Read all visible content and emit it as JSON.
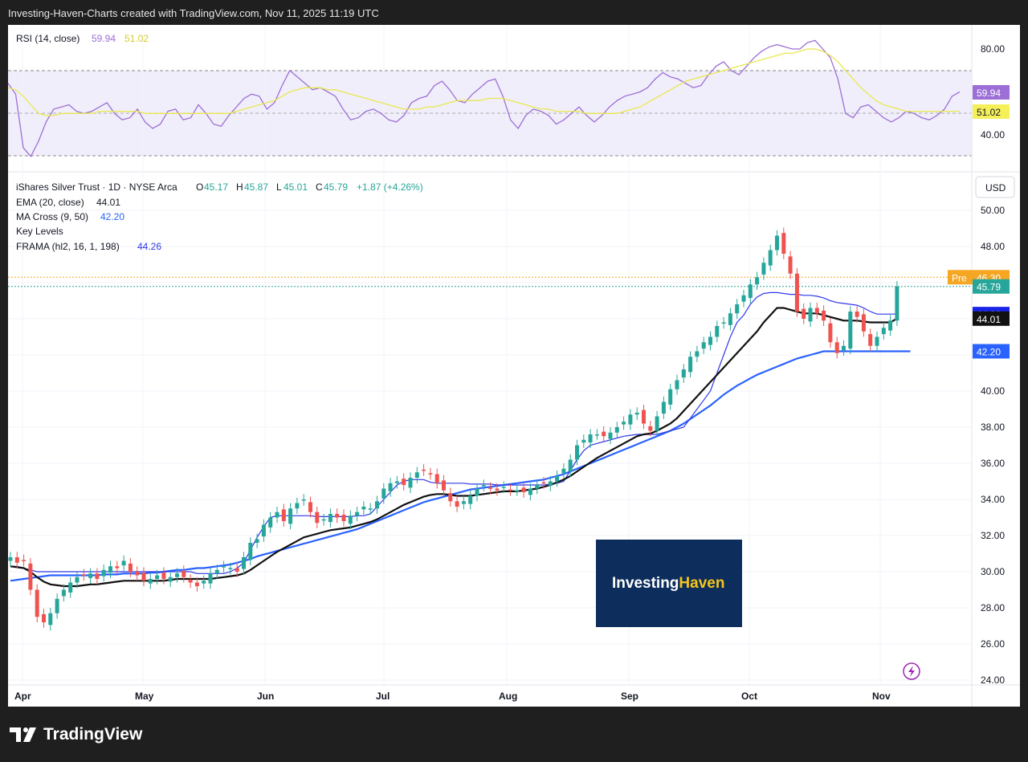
{
  "header": {
    "caption": "Investing-Haven-Charts created with TradingView.com, Nov 11, 2025 11:19 UTC"
  },
  "footer": {
    "brand": "TradingView"
  },
  "rsi": {
    "title": "RSI (14, close)",
    "value": "59.94",
    "ma_value": "51.02",
    "ticks": [
      "80.00",
      "40.00"
    ],
    "badge_rsi": "59.94",
    "badge_ma": "51.02"
  },
  "legend": {
    "symbol": "iShares Silver Trust · 1D · NYSE Arca",
    "o_label": "O",
    "o": "45.17",
    "h_label": "H",
    "h": "45.87",
    "l_label": "L",
    "l": "45.01",
    "c_label": "C",
    "c": "45.79",
    "change": "+1.87 (+4.26%)",
    "ema_title": "EMA (20, close)",
    "ema_value": "44.01",
    "ma_title": "MA Cross (9, 50)",
    "ma_value": "42.20",
    "keylevels_title": "Key Levels",
    "frama_title": "FRAMA (hl2, 16, 1, 198)",
    "frama_value": "44.26"
  },
  "currency": "USD",
  "price_badges": {
    "pre_label": "Pre",
    "pre": "46.30",
    "last": "45.79",
    "frama": "44.26",
    "ema": "44.01",
    "ma": "42.20"
  },
  "watermark": {
    "part1": "Investing",
    "part2": "Haven"
  },
  "colors": {
    "up": "#26a69a",
    "down": "#ef5350",
    "rsi": "#9c6fd6",
    "rsi_ma": "#e8e84f",
    "ema": "#111111",
    "frama": "#2f38e8",
    "ma": "#2962ff",
    "pre": "#f5a623",
    "watermark_bg": "#0d2e5c",
    "watermark_accent": "#f5c518"
  },
  "chart_data": {
    "type": "candlestick",
    "y_axis_ticks": [
      "50.00",
      "48.00",
      "46.00",
      "44.00",
      "42.00",
      "40.00",
      "38.00",
      "36.00",
      "34.00",
      "32.00",
      "30.00",
      "28.00",
      "26.00",
      "24.00"
    ],
    "x_axis_labels": [
      "Apr",
      "May",
      "Jun",
      "Jul",
      "Aug",
      "Sep",
      "Oct",
      "Nov"
    ],
    "ylim": [
      24,
      51
    ],
    "closes": [
      30.8,
      30.5,
      30.6,
      29.0,
      27.5,
      27.2,
      27.7,
      28.5,
      29.0,
      29.4,
      29.7,
      29.8,
      29.9,
      29.6,
      30.1,
      30.3,
      30.2,
      30.6,
      30.0,
      29.8,
      29.5,
      29.6,
      29.8,
      29.6,
      29.7,
      29.9,
      29.7,
      29.4,
      29.2,
      29.5,
      29.9,
      30.1,
      30.3,
      30.2,
      30.0,
      30.8,
      31.6,
      31.8,
      32.6,
      33.0,
      33.3,
      32.8,
      33.5,
      33.8,
      34.0,
      33.3,
      32.7,
      32.9,
      33.2,
      33.0,
      32.8,
      33.1,
      33.3,
      33.6,
      33.5,
      33.9,
      34.6,
      34.9,
      35.0,
      34.8,
      35.2,
      35.5,
      35.6,
      35.4,
      34.9,
      34.5,
      33.9,
      33.6,
      33.9,
      34.2,
      34.6,
      34.8,
      34.6,
      34.5,
      34.7,
      34.5,
      34.5,
      34.4,
      34.6,
      34.8,
      34.9,
      35.0,
      35.3,
      35.7,
      36.2,
      37.0,
      37.3,
      37.6,
      37.6,
      37.5,
      37.7,
      38.0,
      38.3,
      38.7,
      38.8,
      38.2,
      37.8,
      38.6,
      39.4,
      40.1,
      40.6,
      41.2,
      41.9,
      42.2,
      42.7,
      43.0,
      43.6,
      43.8,
      44.3,
      44.8,
      45.3,
      45.9,
      46.3,
      47.1,
      47.8,
      48.6,
      47.6,
      46.5,
      44.4,
      44.0,
      44.6,
      44.3,
      43.9,
      42.7,
      42.1,
      42.5,
      44.4,
      44.1,
      43.3,
      42.5,
      43.0,
      43.5,
      43.9,
      45.79
    ],
    "ema20": [
      30.3,
      30.25,
      30.2,
      30.0,
      29.7,
      29.45,
      29.3,
      29.25,
      29.2,
      29.2,
      29.2,
      29.25,
      29.3,
      29.3,
      29.35,
      29.4,
      29.45,
      29.5,
      29.5,
      29.5,
      29.5,
      29.5,
      29.5,
      29.5,
      29.55,
      29.6,
      29.6,
      29.6,
      29.6,
      29.6,
      29.6,
      29.65,
      29.7,
      29.75,
      29.8,
      29.9,
      30.1,
      30.35,
      30.6,
      30.85,
      31.1,
      31.3,
      31.5,
      31.7,
      31.9,
      32.0,
      32.1,
      32.2,
      32.3,
      32.35,
      32.4,
      32.45,
      32.55,
      32.65,
      32.75,
      32.9,
      33.1,
      33.3,
      33.5,
      33.7,
      33.85,
      34.0,
      34.15,
      34.25,
      34.3,
      34.3,
      34.25,
      34.2,
      34.2,
      34.2,
      34.25,
      34.3,
      34.35,
      34.4,
      34.45,
      34.45,
      34.45,
      34.5,
      34.55,
      34.6,
      34.7,
      34.8,
      34.95,
      35.1,
      35.3,
      35.55,
      35.8,
      36.05,
      36.3,
      36.5,
      36.7,
      36.9,
      37.1,
      37.3,
      37.5,
      37.6,
      37.65,
      37.8,
      38.0,
      38.2,
      38.5,
      38.9,
      39.3,
      39.7,
      40.1,
      40.5,
      40.9,
      41.3,
      41.7,
      42.1,
      42.5,
      42.9,
      43.3,
      43.8,
      44.2,
      44.6,
      44.6,
      44.5,
      44.4,
      44.3,
      44.3,
      44.3,
      44.2,
      44.1,
      44.0,
      43.9,
      43.9,
      43.9,
      43.85,
      43.8,
      43.8,
      43.8,
      43.8,
      44.01
    ],
    "frama": [
      30.3,
      30.3,
      30.2,
      30.1,
      30.0,
      30.0,
      30.0,
      30.0,
      30.0,
      30.0,
      30.0,
      30.0,
      30.0,
      30.0,
      30.0,
      30.0,
      30.0,
      30.0,
      30.0,
      30.0,
      30.0,
      30.0,
      30.0,
      30.0,
      30.0,
      30.0,
      30.0,
      30.0,
      29.9,
      29.9,
      29.9,
      29.9,
      29.9,
      30.0,
      30.2,
      30.5,
      31.2,
      31.9,
      32.5,
      33.0,
      33.1,
      33.1,
      33.1,
      33.1,
      33.1,
      33.1,
      33.05,
      33.05,
      33.05,
      33.05,
      33.05,
      33.05,
      33.1,
      33.1,
      33.2,
      33.6,
      34.0,
      34.4,
      34.8,
      35.0,
      35.1,
      35.1,
      35.1,
      34.95,
      34.9,
      34.9,
      34.9,
      34.9,
      34.9,
      34.85,
      34.85,
      34.85,
      34.85,
      34.8,
      34.8,
      34.8,
      34.8,
      34.8,
      34.8,
      34.8,
      34.8,
      34.85,
      34.9,
      35.0,
      35.6,
      36.2,
      36.7,
      37.0,
      37.1,
      37.2,
      37.3,
      37.4,
      37.5,
      37.55,
      37.6,
      37.6,
      37.6,
      37.6,
      37.7,
      37.8,
      37.9,
      38.0,
      38.5,
      39.0,
      39.5,
      40.0,
      41.0,
      42.0,
      43.0,
      43.8,
      44.2,
      44.8,
      45.2,
      45.4,
      45.45,
      45.45,
      45.4,
      45.35,
      45.35,
      45.3,
      45.3,
      45.25,
      45.15,
      45.0,
      44.9,
      44.85,
      44.8,
      44.75,
      44.6,
      44.4,
      44.26,
      44.26,
      44.26,
      44.26
    ],
    "ma50": [
      29.5,
      29.55,
      29.6,
      29.65,
      29.7,
      29.75,
      29.8,
      29.8,
      29.8,
      29.8,
      29.8,
      29.8,
      29.8,
      29.8,
      29.85,
      29.85,
      29.85,
      29.9,
      29.9,
      29.9,
      29.9,
      29.95,
      29.95,
      30.0,
      30.05,
      30.1,
      30.1,
      30.15,
      30.2,
      30.2,
      30.25,
      30.3,
      30.35,
      30.4,
      30.5,
      30.6,
      30.7,
      30.85,
      30.95,
      31.05,
      31.15,
      31.25,
      31.35,
      31.45,
      31.55,
      31.65,
      31.75,
      31.85,
      31.95,
      32.05,
      32.15,
      32.25,
      32.35,
      32.5,
      32.65,
      32.8,
      32.95,
      33.1,
      33.25,
      33.4,
      33.55,
      33.7,
      33.85,
      33.95,
      34.05,
      34.15,
      34.25,
      34.35,
      34.45,
      34.55,
      34.6,
      34.65,
      34.7,
      34.75,
      34.8,
      34.85,
      34.9,
      34.95,
      35.0,
      35.05,
      35.1,
      35.2,
      35.3,
      35.4,
      35.55,
      35.7,
      35.85,
      36.0,
      36.15,
      36.3,
      36.45,
      36.6,
      36.75,
      36.9,
      37.05,
      37.2,
      37.35,
      37.5,
      37.65,
      37.8,
      38.0,
      38.2,
      38.45,
      38.7,
      38.95,
      39.2,
      39.5,
      39.8,
      40.05,
      40.3,
      40.5,
      40.7,
      40.9,
      41.05,
      41.2,
      41.35,
      41.5,
      41.65,
      41.8,
      41.9,
      42.0,
      42.1,
      42.2,
      42.2,
      42.2,
      42.2,
      42.2,
      42.2,
      42.2,
      42.2,
      42.2,
      42.2,
      42.2,
      42.2,
      42.2,
      42.2
    ],
    "rsi_ticks": [
      80,
      40
    ],
    "rsi_values": [
      64,
      59,
      34,
      30,
      37,
      46,
      52,
      53,
      54,
      51,
      50,
      51,
      53,
      55,
      50,
      47,
      48,
      52,
      46,
      43,
      45,
      51,
      52,
      47,
      48,
      54,
      50,
      45,
      44,
      49,
      53,
      57,
      59,
      58,
      52,
      55,
      63,
      70,
      67,
      64,
      61,
      62,
      60,
      58,
      52,
      47,
      48,
      51,
      52,
      50,
      47,
      46,
      49,
      55,
      57,
      58,
      63,
      65,
      61,
      56,
      55,
      59,
      62,
      65,
      66,
      58,
      47,
      43,
      49,
      52,
      51,
      49,
      45,
      47,
      50,
      53,
      49,
      46,
      49,
      53,
      56,
      58,
      59,
      60,
      62,
      66,
      69,
      67,
      66,
      64,
      62,
      63,
      68,
      72,
      74,
      70,
      68,
      72,
      76,
      79,
      81,
      82,
      81,
      80,
      80,
      83,
      84,
      80,
      76,
      66,
      50,
      48,
      53,
      54,
      51,
      48,
      46,
      48,
      51,
      50,
      48,
      47,
      49,
      52,
      58,
      60
    ],
    "rsi_ma_values": [
      62,
      61,
      58,
      54,
      50,
      49,
      49,
      50,
      50,
      50,
      50,
      50,
      51,
      51,
      51,
      51,
      51,
      51,
      50,
      50,
      50,
      50,
      50,
      50,
      50,
      50,
      50,
      50,
      50,
      50,
      51,
      52,
      53,
      54,
      55,
      56,
      58,
      60,
      61,
      62,
      62,
      62,
      61,
      61,
      60,
      59,
      58,
      57,
      56,
      55,
      54,
      53,
      52,
      52,
      52,
      53,
      53,
      54,
      55,
      56,
      56,
      56,
      56,
      57,
      57,
      57,
      56,
      55,
      54,
      53,
      52,
      52,
      51,
      51,
      51,
      51,
      50,
      50,
      50,
      50,
      50,
      51,
      52,
      53,
      55,
      57,
      59,
      61,
      63,
      65,
      66,
      67,
      68,
      69,
      70,
      71,
      72,
      73,
      74,
      75,
      76,
      77,
      78,
      78,
      79,
      80,
      80,
      79,
      77,
      74,
      70,
      66,
      62,
      59,
      56,
      54,
      53,
      52,
      51,
      51,
      51,
      51,
      51,
      51,
      51,
      51.02
    ]
  }
}
